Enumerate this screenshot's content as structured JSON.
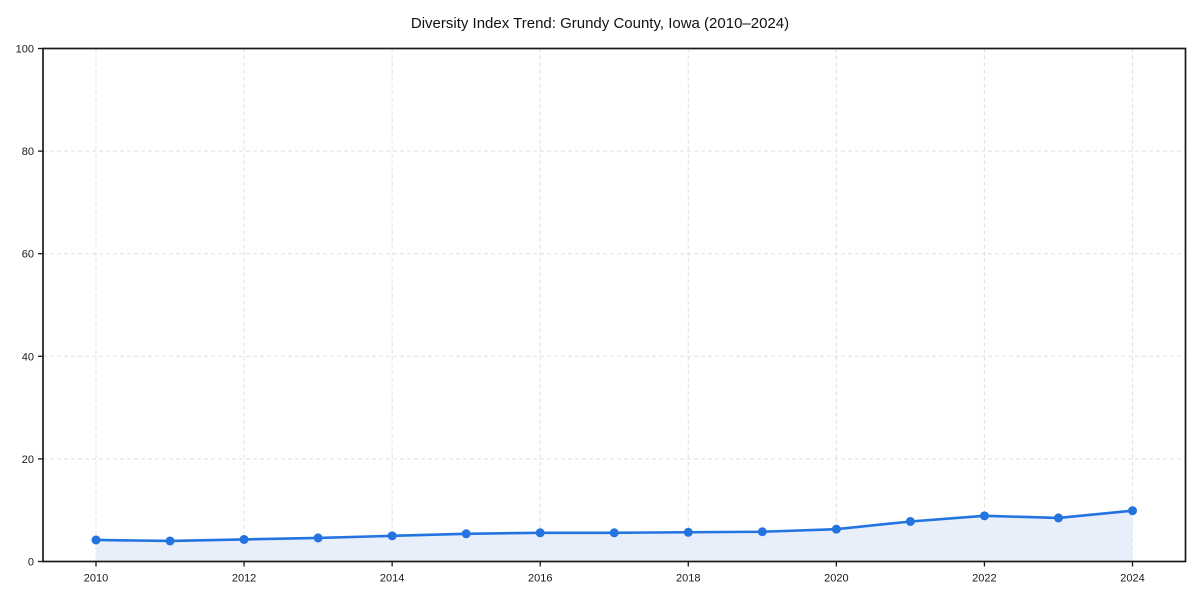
{
  "page": {
    "background": "#ffffff"
  },
  "chart_data": {
    "type": "line",
    "title": "Diversity Index Trend: Grundy County, Iowa (2010–2024)",
    "x": [
      2010,
      2011,
      2012,
      2013,
      2014,
      2015,
      2016,
      2017,
      2018,
      2019,
      2020,
      2021,
      2022,
      2023,
      2024
    ],
    "values": [
      4.2,
      4.0,
      4.3,
      4.6,
      5.0,
      5.4,
      5.6,
      5.6,
      5.7,
      5.8,
      6.3,
      7.8,
      8.9,
      8.5,
      9.9
    ],
    "xlabel": "",
    "ylabel": "",
    "ylim": [
      0,
      100
    ],
    "yticks": [
      0,
      20,
      40,
      60,
      80,
      100
    ],
    "xticks": [
      2010,
      2012,
      2014,
      2016,
      2018,
      2020,
      2022,
      2024
    ],
    "grid": true,
    "legend": false,
    "marker": "circle",
    "colors": {
      "line": "#2374e1",
      "marker": "#2374e1",
      "area_fill": "#e8effb",
      "grid": "#e0e0e0",
      "axis": "#1a1a1a",
      "text": "#1a1a1a",
      "background": "#ffffff"
    }
  }
}
